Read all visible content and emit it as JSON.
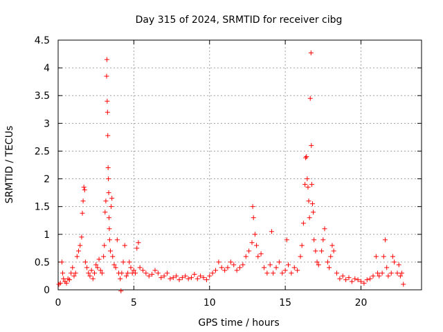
{
  "chart_data": {
    "type": "scatter",
    "title": "Day 315 of 2024, SRMTID for receiver cibg",
    "xlabel": "GPS time / hours",
    "ylabel": "SRMTID / TECUs",
    "xlim": [
      0,
      24
    ],
    "ylim": [
      0,
      4.5
    ],
    "x_ticks": [
      0,
      5,
      10,
      15,
      20
    ],
    "x_tick_labels": [
      "0",
      "5",
      "10",
      "15",
      "20"
    ],
    "y_ticks": [
      0,
      0.5,
      1,
      1.5,
      2,
      2.5,
      3,
      3.5,
      4,
      4.5
    ],
    "y_tick_labels": [
      "0",
      "0.5",
      "1",
      "1.5",
      "2",
      "2.5",
      "3",
      "3.5",
      "4",
      "4.5"
    ],
    "grid": true,
    "marker": "+",
    "color": "#ff0000",
    "series": [
      {
        "name": "SRMTID",
        "points": [
          [
            0.05,
            0.1
          ],
          [
            0.15,
            0.12
          ],
          [
            0.25,
            0.5
          ],
          [
            0.3,
            0.3
          ],
          [
            0.35,
            0.2
          ],
          [
            0.45,
            0.15
          ],
          [
            0.55,
            0.12
          ],
          [
            0.65,
            0.2
          ],
          [
            0.75,
            0.18
          ],
          [
            0.85,
            0.3
          ],
          [
            0.95,
            0.4
          ],
          [
            1.05,
            0.25
          ],
          [
            1.15,
            0.3
          ],
          [
            1.25,
            0.6
          ],
          [
            1.35,
            0.7
          ],
          [
            1.45,
            0.8
          ],
          [
            1.55,
            0.95
          ],
          [
            1.6,
            1.38
          ],
          [
            1.65,
            1.6
          ],
          [
            1.7,
            1.85
          ],
          [
            1.75,
            1.8
          ],
          [
            1.8,
            0.5
          ],
          [
            1.9,
            0.4
          ],
          [
            2.0,
            0.3
          ],
          [
            2.1,
            0.25
          ],
          [
            2.2,
            0.35
          ],
          [
            2.3,
            0.2
          ],
          [
            2.4,
            0.3
          ],
          [
            2.5,
            0.45
          ],
          [
            2.6,
            0.4
          ],
          [
            2.7,
            0.55
          ],
          [
            2.8,
            0.35
          ],
          [
            2.9,
            0.3
          ],
          [
            3.0,
            0.6
          ],
          [
            3.05,
            0.8
          ],
          [
            3.1,
            1.4
          ],
          [
            3.15,
            1.6
          ],
          [
            3.2,
            3.85
          ],
          [
            3.22,
            4.15
          ],
          [
            3.24,
            3.4
          ],
          [
            3.26,
            3.2
          ],
          [
            3.28,
            2.78
          ],
          [
            3.3,
            2.2
          ],
          [
            3.32,
            2.0
          ],
          [
            3.34,
            1.75
          ],
          [
            3.36,
            1.3
          ],
          [
            3.38,
            1.1
          ],
          [
            3.4,
            0.9
          ],
          [
            3.45,
            0.7
          ],
          [
            3.5,
            1.5
          ],
          [
            3.55,
            1.65
          ],
          [
            3.6,
            0.6
          ],
          [
            3.7,
            0.45
          ],
          [
            3.8,
            0.4
          ],
          [
            3.9,
            0.9
          ],
          [
            4.0,
            0.3
          ],
          [
            4.1,
            0.2
          ],
          [
            4.15,
            -0.02
          ],
          [
            4.2,
            0.3
          ],
          [
            4.3,
            0.5
          ],
          [
            4.4,
            0.8
          ],
          [
            4.5,
            0.25
          ],
          [
            4.6,
            0.3
          ],
          [
            4.7,
            0.5
          ],
          [
            4.8,
            0.4
          ],
          [
            4.9,
            0.3
          ],
          [
            5.0,
            0.35
          ],
          [
            5.1,
            0.3
          ],
          [
            5.2,
            0.75
          ],
          [
            5.3,
            0.85
          ],
          [
            5.4,
            0.4
          ],
          [
            5.6,
            0.35
          ],
          [
            5.8,
            0.3
          ],
          [
            6.0,
            0.25
          ],
          [
            6.2,
            0.28
          ],
          [
            6.4,
            0.35
          ],
          [
            6.6,
            0.3
          ],
          [
            6.8,
            0.22
          ],
          [
            7.0,
            0.25
          ],
          [
            7.2,
            0.3
          ],
          [
            7.4,
            0.2
          ],
          [
            7.6,
            0.22
          ],
          [
            7.8,
            0.25
          ],
          [
            8.0,
            0.18
          ],
          [
            8.2,
            0.22
          ],
          [
            8.4,
            0.25
          ],
          [
            8.6,
            0.2
          ],
          [
            8.8,
            0.22
          ],
          [
            9.0,
            0.28
          ],
          [
            9.2,
            0.2
          ],
          [
            9.4,
            0.25
          ],
          [
            9.6,
            0.22
          ],
          [
            9.8,
            0.18
          ],
          [
            10.0,
            0.25
          ],
          [
            10.2,
            0.3
          ],
          [
            10.4,
            0.35
          ],
          [
            10.6,
            0.5
          ],
          [
            10.8,
            0.4
          ],
          [
            11.0,
            0.35
          ],
          [
            11.2,
            0.4
          ],
          [
            11.4,
            0.5
          ],
          [
            11.6,
            0.45
          ],
          [
            11.8,
            0.35
          ],
          [
            12.0,
            0.4
          ],
          [
            12.2,
            0.45
          ],
          [
            12.4,
            0.6
          ],
          [
            12.6,
            0.7
          ],
          [
            12.8,
            0.85
          ],
          [
            12.85,
            1.5
          ],
          [
            12.9,
            1.3
          ],
          [
            13.0,
            1.0
          ],
          [
            13.1,
            0.8
          ],
          [
            13.2,
            0.6
          ],
          [
            13.4,
            0.65
          ],
          [
            13.6,
            0.4
          ],
          [
            13.8,
            0.3
          ],
          [
            14.0,
            0.45
          ],
          [
            14.1,
            1.05
          ],
          [
            14.2,
            0.3
          ],
          [
            14.4,
            0.4
          ],
          [
            14.6,
            0.5
          ],
          [
            14.8,
            0.3
          ],
          [
            15.0,
            0.35
          ],
          [
            15.1,
            0.9
          ],
          [
            15.2,
            0.45
          ],
          [
            15.4,
            0.3
          ],
          [
            15.6,
            0.4
          ],
          [
            15.8,
            0.35
          ],
          [
            16.0,
            0.6
          ],
          [
            16.1,
            0.8
          ],
          [
            16.2,
            1.2
          ],
          [
            16.3,
            1.9
          ],
          [
            16.35,
            2.38
          ],
          [
            16.4,
            2.4
          ],
          [
            16.45,
            2.0
          ],
          [
            16.5,
            1.85
          ],
          [
            16.55,
            1.6
          ],
          [
            16.6,
            1.3
          ],
          [
            16.65,
            3.45
          ],
          [
            16.7,
            4.27
          ],
          [
            16.72,
            2.6
          ],
          [
            16.75,
            1.9
          ],
          [
            16.8,
            1.55
          ],
          [
            16.85,
            1.4
          ],
          [
            16.9,
            0.9
          ],
          [
            17.0,
            0.7
          ],
          [
            17.1,
            0.5
          ],
          [
            17.2,
            0.45
          ],
          [
            17.4,
            0.7
          ],
          [
            17.5,
            0.9
          ],
          [
            17.6,
            1.1
          ],
          [
            17.8,
            0.5
          ],
          [
            17.9,
            0.4
          ],
          [
            18.0,
            0.6
          ],
          [
            18.1,
            0.8
          ],
          [
            18.2,
            0.7
          ],
          [
            18.4,
            0.3
          ],
          [
            18.6,
            0.2
          ],
          [
            18.8,
            0.25
          ],
          [
            19.0,
            0.18
          ],
          [
            19.2,
            0.22
          ],
          [
            19.4,
            0.15
          ],
          [
            19.6,
            0.2
          ],
          [
            19.8,
            0.18
          ],
          [
            20.0,
            0.15
          ],
          [
            20.2,
            0.12
          ],
          [
            20.4,
            0.18
          ],
          [
            20.6,
            0.2
          ],
          [
            20.8,
            0.25
          ],
          [
            21.0,
            0.6
          ],
          [
            21.1,
            0.3
          ],
          [
            21.2,
            0.25
          ],
          [
            21.4,
            0.3
          ],
          [
            21.5,
            0.6
          ],
          [
            21.6,
            0.9
          ],
          [
            21.7,
            0.4
          ],
          [
            21.8,
            0.25
          ],
          [
            22.0,
            0.3
          ],
          [
            22.1,
            0.6
          ],
          [
            22.2,
            0.5
          ],
          [
            22.4,
            0.3
          ],
          [
            22.5,
            0.45
          ],
          [
            22.6,
            0.25
          ],
          [
            22.7,
            0.3
          ],
          [
            22.8,
            0.1
          ]
        ]
      }
    ]
  }
}
